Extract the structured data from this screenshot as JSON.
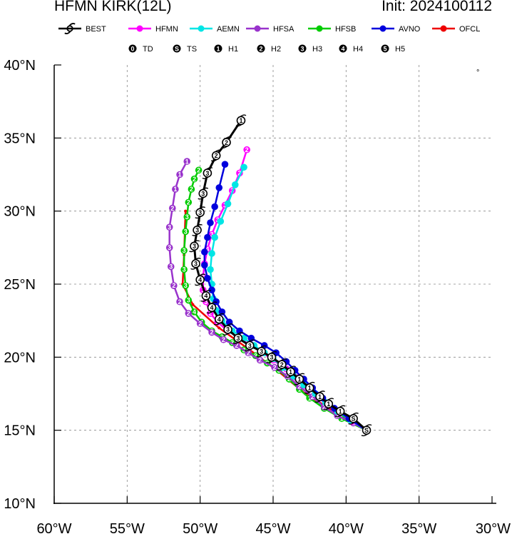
{
  "header": {
    "title": "HFMN KIRK(12L)",
    "init": "Init: 2024100112"
  },
  "legend": {
    "models": [
      {
        "name": "BEST",
        "color": "#000000"
      },
      {
        "name": "HFMN",
        "color": "#ff00ff"
      },
      {
        "name": "AEMN",
        "color": "#00e5e5"
      },
      {
        "name": "HFSA",
        "color": "#9933cc"
      },
      {
        "name": "HFSB",
        "color": "#00cc00"
      },
      {
        "name": "AVNO",
        "color": "#0000dd"
      },
      {
        "name": "OFCL",
        "color": "#ee0000"
      }
    ],
    "categories": [
      {
        "symbol": "0",
        "label": "TD"
      },
      {
        "symbol": "S",
        "label": "TS"
      },
      {
        "symbol": "1",
        "label": "H1"
      },
      {
        "symbol": "2",
        "label": "H2"
      },
      {
        "symbol": "3",
        "label": "H3"
      },
      {
        "symbol": "4",
        "label": "H4"
      },
      {
        "symbol": "5",
        "label": "H5"
      }
    ]
  },
  "chart_data": {
    "type": "scatter",
    "subtype": "hurricane track map",
    "x_ticks": [
      "60°W",
      "55°W",
      "50°W",
      "45°W",
      "40°W",
      "35°W",
      "30°W"
    ],
    "y_ticks": [
      "10°N",
      "15°N",
      "20°N",
      "25°N",
      "30°N",
      "35°N",
      "40°N"
    ],
    "xlim": [
      -60,
      -30
    ],
    "ylim": [
      10,
      40
    ],
    "grid": true,
    "grid_style": "dashed",
    "tracks": [
      {
        "name": "OFCL",
        "color": "#ee0000",
        "points": [
          [
            -38.6,
            15.0
          ],
          [
            -40.8,
            16.3
          ],
          [
            -42.8,
            17.5
          ],
          [
            -44.6,
            19.0
          ],
          [
            -46.6,
            20.5
          ],
          [
            -48.7,
            22.0
          ],
          [
            -50.5,
            23.6
          ],
          [
            -51.2,
            25.0
          ],
          [
            -51.1,
            27.0
          ],
          [
            -51.0,
            30.0
          ]
        ],
        "labels": []
      },
      {
        "name": "HFSB",
        "color": "#00cc00",
        "points": [
          [
            -38.6,
            15.0
          ],
          [
            -40.3,
            15.8
          ],
          [
            -41.5,
            16.5
          ],
          [
            -42.5,
            17.2
          ],
          [
            -43.2,
            17.8
          ],
          [
            -43.9,
            18.5
          ],
          [
            -44.6,
            19.1
          ],
          [
            -45.4,
            19.6
          ],
          [
            -46.2,
            20.1
          ],
          [
            -47.0,
            20.5
          ],
          [
            -47.8,
            21.0
          ],
          [
            -48.5,
            21.4
          ],
          [
            -49.2,
            21.8
          ],
          [
            -49.9,
            22.4
          ],
          [
            -50.4,
            23.1
          ],
          [
            -50.8,
            23.9
          ],
          [
            -51.0,
            24.9
          ],
          [
            -51.1,
            26.0
          ],
          [
            -51.1,
            27.3
          ],
          [
            -51.0,
            28.6
          ],
          [
            -50.9,
            29.6
          ],
          [
            -50.8,
            30.6
          ],
          [
            -50.6,
            31.5
          ],
          [
            -50.4,
            32.2
          ],
          [
            -50.1,
            32.8
          ]
        ],
        "labels": [
          "S",
          "1",
          "1",
          "1",
          "1",
          "2",
          "3",
          "3",
          "3",
          "3",
          "3",
          "3",
          "3",
          "4",
          "4",
          "3",
          "3",
          "3",
          "3",
          "3",
          "3",
          "2",
          "2",
          "2",
          "2"
        ]
      },
      {
        "name": "HFSA",
        "color": "#9933cc",
        "points": [
          [
            -38.6,
            15.0
          ],
          [
            -39.5,
            15.5
          ],
          [
            -40.6,
            16.0
          ],
          [
            -41.5,
            16.6
          ],
          [
            -42.3,
            17.3
          ],
          [
            -43.2,
            18.0
          ],
          [
            -44.0,
            18.7
          ],
          [
            -44.9,
            19.3
          ],
          [
            -45.9,
            19.8
          ],
          [
            -46.7,
            20.3
          ],
          [
            -47.5,
            20.8
          ],
          [
            -48.4,
            21.2
          ],
          [
            -49.2,
            21.7
          ],
          [
            -50.0,
            22.3
          ],
          [
            -50.8,
            23.0
          ],
          [
            -51.4,
            23.8
          ],
          [
            -51.8,
            24.9
          ],
          [
            -52.0,
            26.2
          ],
          [
            -52.1,
            27.5
          ],
          [
            -52.1,
            28.9
          ],
          [
            -51.9,
            30.2
          ],
          [
            -51.7,
            31.5
          ],
          [
            -51.4,
            32.5
          ],
          [
            -50.9,
            33.4
          ]
        ],
        "labels": [
          "S",
          "1",
          "2",
          "2",
          "2",
          "2",
          "2",
          "2",
          "2",
          "2",
          "2",
          "2",
          "2",
          "2",
          "2",
          "2",
          "2",
          "3",
          "3",
          "3",
          "2",
          "1",
          "1",
          "1"
        ]
      },
      {
        "name": "HFMN",
        "color": "#ff00ff",
        "points": [
          [
            -38.6,
            15.0
          ],
          [
            -39.6,
            15.6
          ],
          [
            -40.4,
            16.2
          ],
          [
            -41.2,
            16.8
          ],
          [
            -41.9,
            17.4
          ],
          [
            -42.7,
            18.0
          ],
          [
            -43.4,
            18.6
          ],
          [
            -44.1,
            19.2
          ],
          [
            -45.0,
            19.8
          ],
          [
            -45.7,
            20.3
          ],
          [
            -46.5,
            20.8
          ],
          [
            -47.3,
            21.3
          ],
          [
            -48.1,
            21.8
          ],
          [
            -48.8,
            22.4
          ],
          [
            -49.3,
            23.0
          ],
          [
            -49.6,
            23.8
          ],
          [
            -49.8,
            24.6
          ],
          [
            -49.8,
            25.5
          ],
          [
            -49.7,
            26.4
          ],
          [
            -49.5,
            27.4
          ],
          [
            -49.2,
            28.4
          ],
          [
            -48.8,
            29.4
          ],
          [
            -48.3,
            30.4
          ],
          [
            -47.8,
            31.4
          ],
          [
            -47.3,
            32.6
          ],
          [
            -46.8,
            34.2
          ]
        ],
        "labels": [
          "S",
          "S",
          "S",
          "1",
          "1",
          "1",
          "1",
          "1",
          "1",
          "2",
          "2",
          "2",
          "2",
          "2",
          "2",
          "3",
          "3",
          "3",
          "4",
          "4",
          "3",
          "3",
          "3",
          "3",
          "2",
          "2"
        ]
      },
      {
        "name": "AEMN",
        "color": "#00e5e5",
        "points": [
          [
            -38.6,
            15.0
          ],
          [
            -39.7,
            15.7
          ],
          [
            -40.6,
            16.3
          ],
          [
            -41.4,
            16.9
          ],
          [
            -42.1,
            17.5
          ],
          [
            -42.9,
            18.1
          ],
          [
            -43.6,
            18.7
          ],
          [
            -44.3,
            19.3
          ],
          [
            -45.0,
            19.9
          ],
          [
            -45.6,
            20.3
          ],
          [
            -46.3,
            20.8
          ],
          [
            -47.0,
            21.3
          ],
          [
            -47.8,
            21.8
          ],
          [
            -48.5,
            22.5
          ],
          [
            -48.9,
            23.2
          ],
          [
            -49.1,
            24.0
          ],
          [
            -49.2,
            25.0
          ],
          [
            -49.3,
            26.0
          ],
          [
            -49.2,
            27.1
          ],
          [
            -49.0,
            28.2
          ],
          [
            -48.6,
            29.3
          ],
          [
            -48.1,
            30.5
          ],
          [
            -47.6,
            31.8
          ],
          [
            -47.0,
            33.0
          ]
        ],
        "labels": []
      },
      {
        "name": "AVNO",
        "color": "#0000dd",
        "points": [
          [
            -38.6,
            15.0
          ],
          [
            -39.8,
            15.8
          ],
          [
            -40.8,
            16.5
          ],
          [
            -41.6,
            17.2
          ],
          [
            -42.3,
            17.9
          ],
          [
            -42.9,
            18.5
          ],
          [
            -43.5,
            19.1
          ],
          [
            -44.1,
            19.7
          ],
          [
            -44.8,
            20.3
          ],
          [
            -45.6,
            20.8
          ],
          [
            -46.5,
            21.3
          ],
          [
            -47.3,
            21.8
          ],
          [
            -48.0,
            22.4
          ],
          [
            -48.5,
            23.1
          ],
          [
            -48.9,
            23.8
          ],
          [
            -49.2,
            24.6
          ],
          [
            -49.5,
            25.4
          ],
          [
            -49.7,
            26.3
          ],
          [
            -49.7,
            27.2
          ],
          [
            -49.5,
            28.2
          ],
          [
            -49.3,
            29.2
          ],
          [
            -49.0,
            30.3
          ],
          [
            -48.7,
            31.6
          ],
          [
            -48.3,
            33.2
          ]
        ],
        "labels": []
      },
      {
        "name": "BEST",
        "color": "#000000",
        "points": [
          [
            -38.6,
            15.0
          ],
          [
            -39.5,
            15.8
          ],
          [
            -40.4,
            16.3
          ],
          [
            -41.2,
            16.8
          ],
          [
            -41.8,
            17.3
          ],
          [
            -42.5,
            17.9
          ],
          [
            -43.2,
            18.5
          ],
          [
            -43.8,
            19.0
          ],
          [
            -44.4,
            19.5
          ],
          [
            -45.1,
            20.0
          ],
          [
            -45.8,
            20.4
          ],
          [
            -46.6,
            20.8
          ],
          [
            -47.4,
            21.3
          ],
          [
            -48.1,
            21.9
          ],
          [
            -48.7,
            22.6
          ],
          [
            -49.2,
            23.4
          ],
          [
            -49.6,
            24.2
          ],
          [
            -50.0,
            25.3
          ],
          [
            -50.3,
            26.4
          ],
          [
            -50.4,
            27.6
          ],
          [
            -50.2,
            28.7
          ],
          [
            -50.0,
            29.9
          ],
          [
            -49.8,
            31.2
          ],
          [
            -49.5,
            32.6
          ],
          [
            -48.9,
            33.8
          ],
          [
            -48.2,
            34.7
          ],
          [
            -47.2,
            36.2
          ]
        ],
        "labels": [
          "S",
          "S",
          "1",
          "1",
          "1",
          "1",
          "1",
          "1",
          "2",
          "3",
          "3",
          "3",
          "3",
          "3",
          "4",
          "4",
          "4",
          "4",
          "3",
          "3",
          "3",
          "3",
          "3",
          "3",
          "2",
          "2",
          "1"
        ]
      }
    ]
  }
}
